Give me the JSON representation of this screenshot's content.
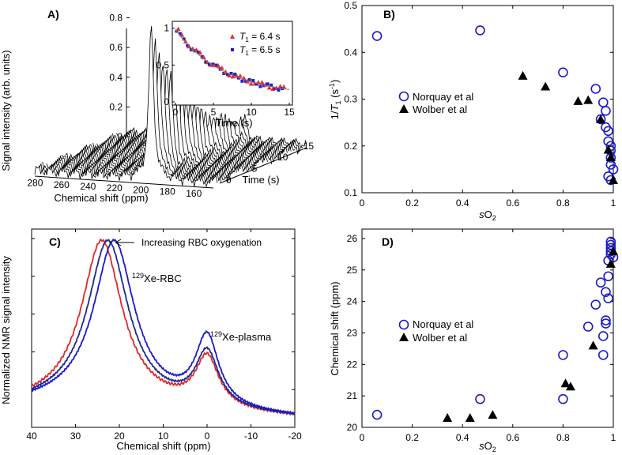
{
  "colors": {
    "blue": "#1a1acc",
    "red": "#e0282c",
    "navy": "#1e2a8c",
    "black": "#000000",
    "ptRed": "#e53030",
    "ptBlue": "#2020c0"
  },
  "chart_data": [
    {
      "id": "A",
      "type": "line",
      "panel_label": "A)",
      "ylabel": "Signal intensity (arb. units)",
      "xlabel": "Chemical shift (ppm)",
      "zlabel": "Time (s)",
      "x_ticks": [
        "280",
        "260",
        "240",
        "220",
        "200",
        "180",
        "160"
      ],
      "y_ticks": [
        "0",
        "0.2",
        "0.4",
        "0.6",
        "0.8",
        "1"
      ],
      "z_ticks": [
        "0",
        "5",
        "10",
        "15"
      ],
      "peak_ppm": 197,
      "n_spectra": 25,
      "inset": {
        "type": "scatter",
        "xlabel": "Time (s)",
        "x_ticks": [
          "0",
          "5",
          "10",
          "15"
        ],
        "y_ticks": [
          "0",
          "0.5",
          "1"
        ],
        "xlim": [
          0,
          15
        ],
        "ylim": [
          0,
          1.05
        ],
        "legend": [
          {
            "name_prefix": "T",
            "sub": "1",
            "value": " = 6.4 s",
            "color": "#e53030",
            "marker": "triangle"
          },
          {
            "name_prefix": "T",
            "sub": "1",
            "value": " = 6.5 s",
            "color": "#2020c0",
            "marker": "square"
          }
        ],
        "T1_fit": 6.45
      }
    },
    {
      "id": "B",
      "type": "scatter",
      "panel_label": "B)",
      "xlabel_prefix": "s",
      "xlabel_main": "O",
      "xlabel_sub": "2",
      "ylabel_pre": "1/",
      "ylabel_T": "T",
      "ylabel_sub": "1",
      "ylabel_post": " (s",
      "ylabel_sup": "-1",
      "ylabel_end": ")",
      "xlim": [
        0,
        1
      ],
      "ylim": [
        0.1,
        0.5
      ],
      "x_ticks": [
        "0",
        "0.2",
        "0.4",
        "0.6",
        "0.8",
        "1"
      ],
      "y_ticks": [
        "0.1",
        "0.2",
        "0.3",
        "0.4",
        "0.5"
      ],
      "legend": [
        {
          "name": "Norquay et al",
          "marker": "circle"
        },
        {
          "name": "Wolber et al",
          "marker": "triangle"
        }
      ],
      "series": [
        {
          "name": "Norquay et al",
          "x": [
            0.06,
            0.47,
            0.8,
            0.93,
            0.95,
            0.96,
            0.97,
            0.97,
            0.98,
            0.98,
            0.99,
            0.99,
            0.99,
            0.99,
            1.0,
            0.98,
            0.99
          ],
          "y": [
            0.435,
            0.447,
            0.357,
            0.322,
            0.257,
            0.293,
            0.275,
            0.24,
            0.232,
            0.21,
            0.2,
            0.19,
            0.175,
            0.16,
            0.15,
            0.135,
            0.127
          ]
        },
        {
          "name": "Wolber et al",
          "x": [
            0.64,
            0.73,
            0.86,
            0.9,
            0.95,
            0.98,
            0.99,
            1.0
          ],
          "y": [
            0.35,
            0.327,
            0.296,
            0.298,
            0.257,
            0.192,
            0.176,
            0.127
          ]
        }
      ]
    },
    {
      "id": "C",
      "type": "line",
      "panel_label": "C)",
      "xlabel": "Chemical shift (ppm)",
      "ylabel": "Normalized NMR signal intensity",
      "xlim": [
        40,
        -20
      ],
      "ylim": [
        0,
        1.05
      ],
      "x_ticks": [
        "40",
        "30",
        "20",
        "10",
        "0",
        "-10",
        "-20"
      ],
      "y_ticks": [
        "0",
        "0.2",
        "0.4",
        "0.6",
        "0.8",
        "1"
      ],
      "annotation": "Increasing RBC oxygenation",
      "rbc_label_sup": "129",
      "rbc_label": "Xe-RBC",
      "plasma_label_sup": "129",
      "plasma_label": "Xe-plasma",
      "series": [
        {
          "name": "red",
          "color": "#e0282c",
          "rbc_center": 24.0,
          "rbc_amp": 1.0,
          "plasma_amp": 0.34
        },
        {
          "name": "navy",
          "color": "#1e2a8c",
          "rbc_center": 22.6,
          "rbc_amp": 1.0,
          "plasma_amp": 0.37
        },
        {
          "name": "blue",
          "color": "#1a1acc",
          "rbc_center": 21.2,
          "rbc_amp": 1.0,
          "plasma_amp": 0.47
        }
      ]
    },
    {
      "id": "D",
      "type": "scatter",
      "panel_label": "D)",
      "xlabel_prefix": "s",
      "xlabel_main": "O",
      "xlabel_sub": "2",
      "ylabel": "Chemical shift (ppm)",
      "xlim": [
        0,
        1
      ],
      "ylim": [
        20,
        26.3
      ],
      "x_ticks": [
        "0",
        "0.2",
        "0.4",
        "0.6",
        "0.8",
        "1"
      ],
      "y_ticks": [
        "20",
        "21",
        "22",
        "23",
        "24",
        "25",
        "26"
      ],
      "legend": [
        {
          "name": "Norquay et al",
          "marker": "circle"
        },
        {
          "name": "Wolber et al",
          "marker": "triangle"
        }
      ],
      "series": [
        {
          "name": "Norquay et al",
          "x": [
            0.06,
            0.47,
            0.8,
            0.8,
            0.9,
            0.93,
            0.95,
            0.96,
            0.96,
            0.97,
            0.97,
            0.97,
            0.98,
            0.98,
            0.98,
            0.99,
            0.99,
            0.99,
            0.99,
            0.99,
            1.0
          ],
          "y": [
            20.4,
            20.9,
            20.9,
            22.3,
            23.2,
            23.9,
            24.6,
            22.3,
            22.9,
            23.3,
            23.4,
            24.3,
            24.1,
            24.8,
            25.3,
            25.5,
            25.7,
            25.8,
            25.9,
            25.6,
            25.4
          ]
        },
        {
          "name": "Wolber et al",
          "x": [
            0.34,
            0.43,
            0.52,
            0.81,
            0.83,
            0.92,
            0.99,
            1.0
          ],
          "y": [
            20.3,
            20.3,
            20.4,
            21.4,
            21.3,
            22.6,
            25.2,
            25.6
          ]
        }
      ]
    }
  ]
}
